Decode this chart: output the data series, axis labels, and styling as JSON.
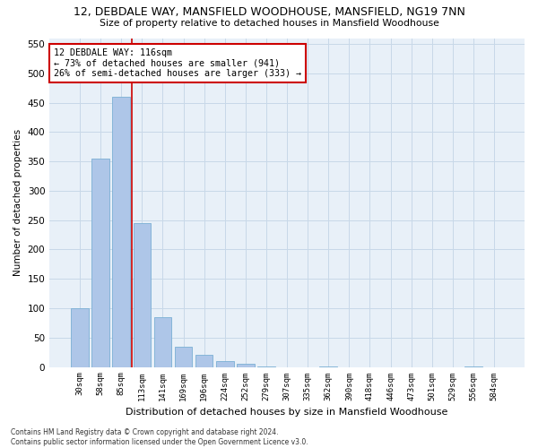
{
  "title_line1": "12, DEBDALE WAY, MANSFIELD WOODHOUSE, MANSFIELD, NG19 7NN",
  "title_line2": "Size of property relative to detached houses in Mansfield Woodhouse",
  "xlabel": "Distribution of detached houses by size in Mansfield Woodhouse",
  "ylabel": "Number of detached properties",
  "footnote": "Contains HM Land Registry data © Crown copyright and database right 2024.\nContains public sector information licensed under the Open Government Licence v3.0.",
  "categories": [
    "30sqm",
    "58sqm",
    "85sqm",
    "113sqm",
    "141sqm",
    "169sqm",
    "196sqm",
    "224sqm",
    "252sqm",
    "279sqm",
    "307sqm",
    "335sqm",
    "362sqm",
    "390sqm",
    "418sqm",
    "446sqm",
    "473sqm",
    "501sqm",
    "529sqm",
    "556sqm",
    "584sqm"
  ],
  "values": [
    100,
    355,
    460,
    245,
    85,
    35,
    20,
    10,
    5,
    1,
    0,
    0,
    1,
    0,
    0,
    0,
    0,
    0,
    0,
    1,
    0
  ],
  "bar_color": "#aec6e8",
  "bar_edge_color": "#7aafd4",
  "grid_color": "#c8d8e8",
  "background_color": "#e8f0f8",
  "vline_color": "#cc0000",
  "vline_index": 2.5,
  "annotation_text": "12 DEBDALE WAY: 116sqm\n← 73% of detached houses are smaller (941)\n26% of semi-detached houses are larger (333) →",
  "annotation_box_facecolor": "#ffffff",
  "annotation_box_edgecolor": "#cc0000",
  "ylim": [
    0,
    560
  ],
  "yticks": [
    0,
    50,
    100,
    150,
    200,
    250,
    300,
    350,
    400,
    450,
    500,
    550
  ]
}
